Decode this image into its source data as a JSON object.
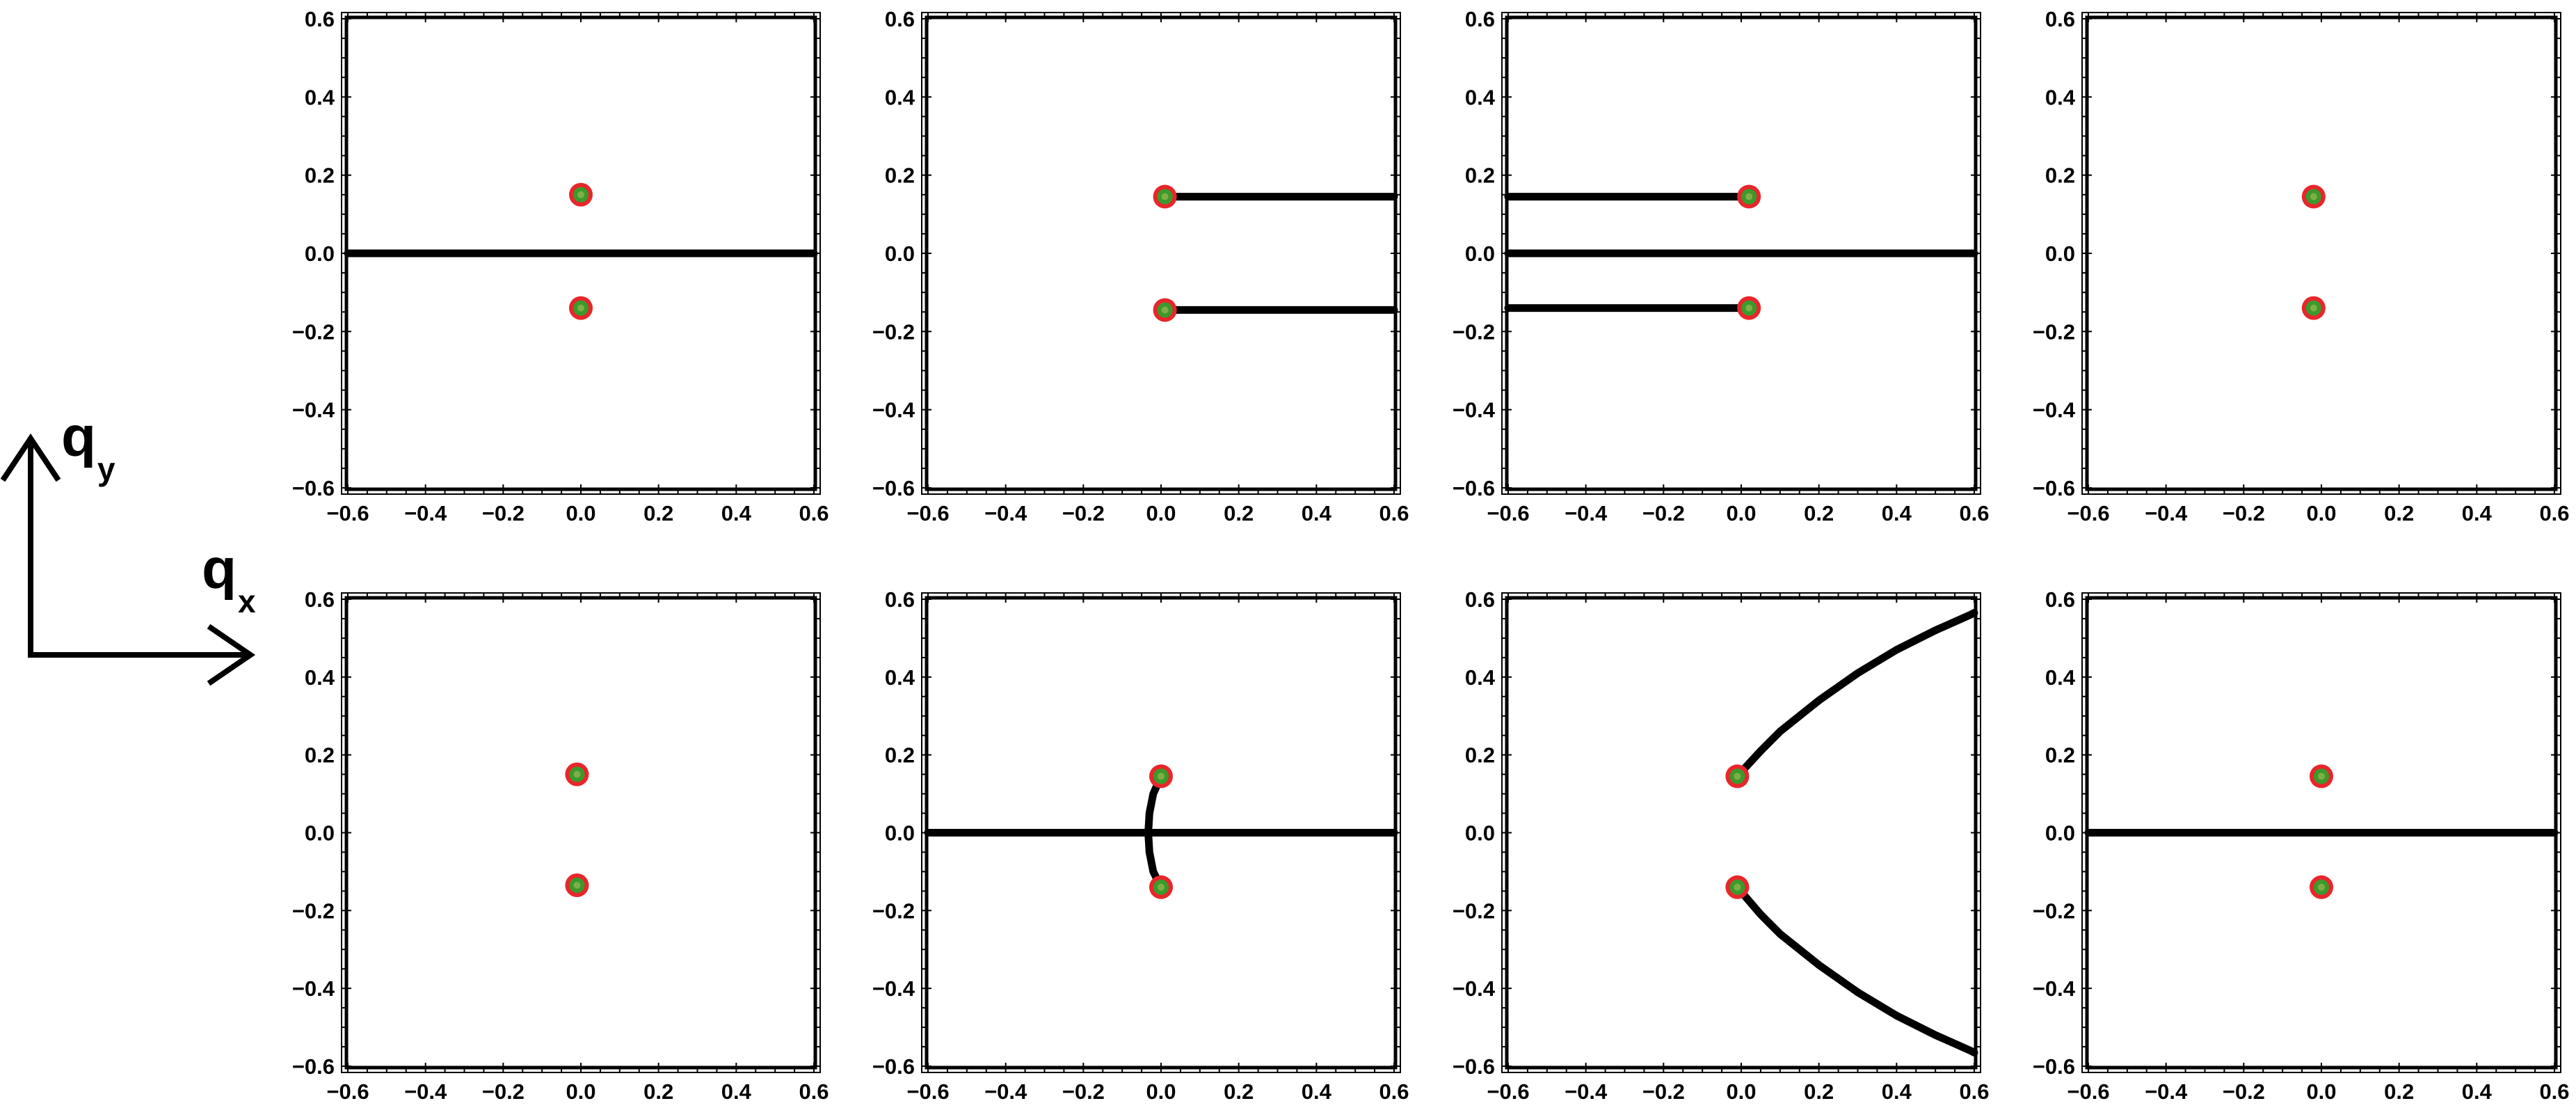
{
  "axes_legend": {
    "y_letter": "q",
    "y_sub": "y",
    "x_letter": "q",
    "x_sub": "x"
  },
  "style": {
    "curve_color": "#000000",
    "point_outer_color": "#e8262b",
    "point_inner_color": "#3a9a2c",
    "point_center_color": "#7fae45"
  },
  "chart_data": [
    {
      "type": "scatter",
      "panel": "row-1-col-1",
      "xlim": [
        -0.6,
        0.6
      ],
      "ylim": [
        -0.6,
        0.6
      ],
      "ticks": [
        -0.6,
        -0.4,
        -0.2,
        0.0,
        0.2,
        0.4,
        0.6
      ],
      "tick_labels": [
        "−0.6",
        "−0.4",
        "−0.2",
        "0.0",
        "0.2",
        "0.4",
        "0.6"
      ],
      "points": [
        {
          "x": 0.0,
          "y": 0.15
        },
        {
          "x": 0.0,
          "y": -0.14
        }
      ],
      "curves": [
        [
          [
            -0.6,
            0.0
          ],
          [
            0.6,
            0.0
          ]
        ]
      ]
    },
    {
      "type": "scatter",
      "panel": "row-1-col-2",
      "xlim": [
        -0.6,
        0.6
      ],
      "ylim": [
        -0.6,
        0.6
      ],
      "ticks": [
        -0.6,
        -0.4,
        -0.2,
        0.0,
        0.2,
        0.4,
        0.6
      ],
      "tick_labels": [
        "−0.6",
        "−0.4",
        "−0.2",
        "0.0",
        "0.2",
        "0.4",
        "0.6"
      ],
      "points": [
        {
          "x": 0.01,
          "y": 0.145
        },
        {
          "x": 0.01,
          "y": -0.145
        }
      ],
      "curves": [
        [
          [
            0.01,
            0.145
          ],
          [
            0.6,
            0.145
          ]
        ],
        [
          [
            0.01,
            -0.145
          ],
          [
            0.6,
            -0.145
          ]
        ]
      ]
    },
    {
      "type": "scatter",
      "panel": "row-1-col-3",
      "xlim": [
        -0.6,
        0.6
      ],
      "ylim": [
        -0.6,
        0.6
      ],
      "ticks": [
        -0.6,
        -0.4,
        -0.2,
        0.0,
        0.2,
        0.4,
        0.6
      ],
      "tick_labels": [
        "−0.6",
        "−0.4",
        "−0.2",
        "0.0",
        "0.2",
        "0.4",
        "0.6"
      ],
      "points": [
        {
          "x": 0.02,
          "y": 0.145
        },
        {
          "x": 0.02,
          "y": -0.14
        }
      ],
      "curves": [
        [
          [
            -0.6,
            0.145
          ],
          [
            0.02,
            0.145
          ]
        ],
        [
          [
            -0.6,
            0.0
          ],
          [
            0.6,
            0.0
          ]
        ],
        [
          [
            -0.6,
            -0.14
          ],
          [
            0.02,
            -0.14
          ]
        ]
      ]
    },
    {
      "type": "scatter",
      "panel": "row-1-col-4",
      "xlim": [
        -0.6,
        0.6
      ],
      "ylim": [
        -0.6,
        0.6
      ],
      "ticks": [
        -0.6,
        -0.4,
        -0.2,
        0.0,
        0.2,
        0.4,
        0.6
      ],
      "tick_labels": [
        "−0.6",
        "−0.4",
        "−0.2",
        "0.0",
        "0.2",
        "0.4",
        "0.6"
      ],
      "points": [
        {
          "x": -0.02,
          "y": 0.145
        },
        {
          "x": -0.02,
          "y": -0.14
        }
      ],
      "curves": []
    },
    {
      "type": "scatter",
      "panel": "row-2-col-1",
      "xlim": [
        -0.6,
        0.6
      ],
      "ylim": [
        -0.6,
        0.6
      ],
      "ticks": [
        -0.6,
        -0.4,
        -0.2,
        0.0,
        0.2,
        0.4,
        0.6
      ],
      "tick_labels": [
        "−0.6",
        "−0.4",
        "−0.2",
        "0.0",
        "0.2",
        "0.4",
        "0.6"
      ],
      "points": [
        {
          "x": -0.01,
          "y": 0.15
        },
        {
          "x": -0.01,
          "y": -0.135
        }
      ],
      "curves": []
    },
    {
      "type": "scatter",
      "panel": "row-2-col-2",
      "xlim": [
        -0.6,
        0.6
      ],
      "ylim": [
        -0.6,
        0.6
      ],
      "ticks": [
        -0.6,
        -0.4,
        -0.2,
        0.0,
        0.2,
        0.4,
        0.6
      ],
      "tick_labels": [
        "−0.6",
        "−0.4",
        "−0.2",
        "0.0",
        "0.2",
        "0.4",
        "0.6"
      ],
      "points": [
        {
          "x": 0.0,
          "y": 0.145
        },
        {
          "x": 0.0,
          "y": -0.14
        }
      ],
      "curves": [
        [
          [
            -0.6,
            0.0
          ],
          [
            0.6,
            0.0
          ]
        ],
        [
          [
            0.0,
            0.145
          ],
          [
            -0.02,
            0.1
          ],
          [
            -0.03,
            0.05
          ],
          [
            -0.033,
            0.0
          ],
          [
            -0.03,
            -0.05
          ],
          [
            -0.02,
            -0.1
          ],
          [
            0.0,
            -0.14
          ]
        ]
      ]
    },
    {
      "type": "scatter",
      "panel": "row-2-col-3",
      "xlim": [
        -0.6,
        0.6
      ],
      "ylim": [
        -0.6,
        0.6
      ],
      "ticks": [
        -0.6,
        -0.4,
        -0.2,
        0.0,
        0.2,
        0.4,
        0.6
      ],
      "tick_labels": [
        "−0.6",
        "−0.4",
        "−0.2",
        "0.0",
        "0.2",
        "0.4",
        "0.6"
      ],
      "points": [
        {
          "x": -0.01,
          "y": 0.145
        },
        {
          "x": -0.01,
          "y": -0.14
        }
      ],
      "curves": [
        [
          [
            -0.01,
            0.145
          ],
          [
            0.05,
            0.21
          ],
          [
            0.1,
            0.26
          ],
          [
            0.2,
            0.34
          ],
          [
            0.3,
            0.41
          ],
          [
            0.4,
            0.47
          ],
          [
            0.5,
            0.52
          ],
          [
            0.59,
            0.56
          ],
          [
            0.6,
            0.565
          ]
        ],
        [
          [
            -0.01,
            -0.14
          ],
          [
            0.05,
            -0.21
          ],
          [
            0.1,
            -0.26
          ],
          [
            0.2,
            -0.34
          ],
          [
            0.3,
            -0.41
          ],
          [
            0.4,
            -0.47
          ],
          [
            0.5,
            -0.52
          ],
          [
            0.59,
            -0.56
          ],
          [
            0.6,
            -0.565
          ]
        ]
      ]
    },
    {
      "type": "scatter",
      "panel": "row-2-col-4",
      "xlim": [
        -0.6,
        0.6
      ],
      "ylim": [
        -0.6,
        0.6
      ],
      "ticks": [
        -0.6,
        -0.4,
        -0.2,
        0.0,
        0.2,
        0.4,
        0.6
      ],
      "tick_labels": [
        "−0.6",
        "−0.4",
        "−0.2",
        "0.0",
        "0.2",
        "0.4",
        "0.6"
      ],
      "points": [
        {
          "x": 0.0,
          "y": 0.145
        },
        {
          "x": 0.0,
          "y": -0.14
        }
      ],
      "curves": [
        [
          [
            -0.6,
            0.0
          ],
          [
            0.6,
            0.0
          ]
        ]
      ]
    }
  ]
}
